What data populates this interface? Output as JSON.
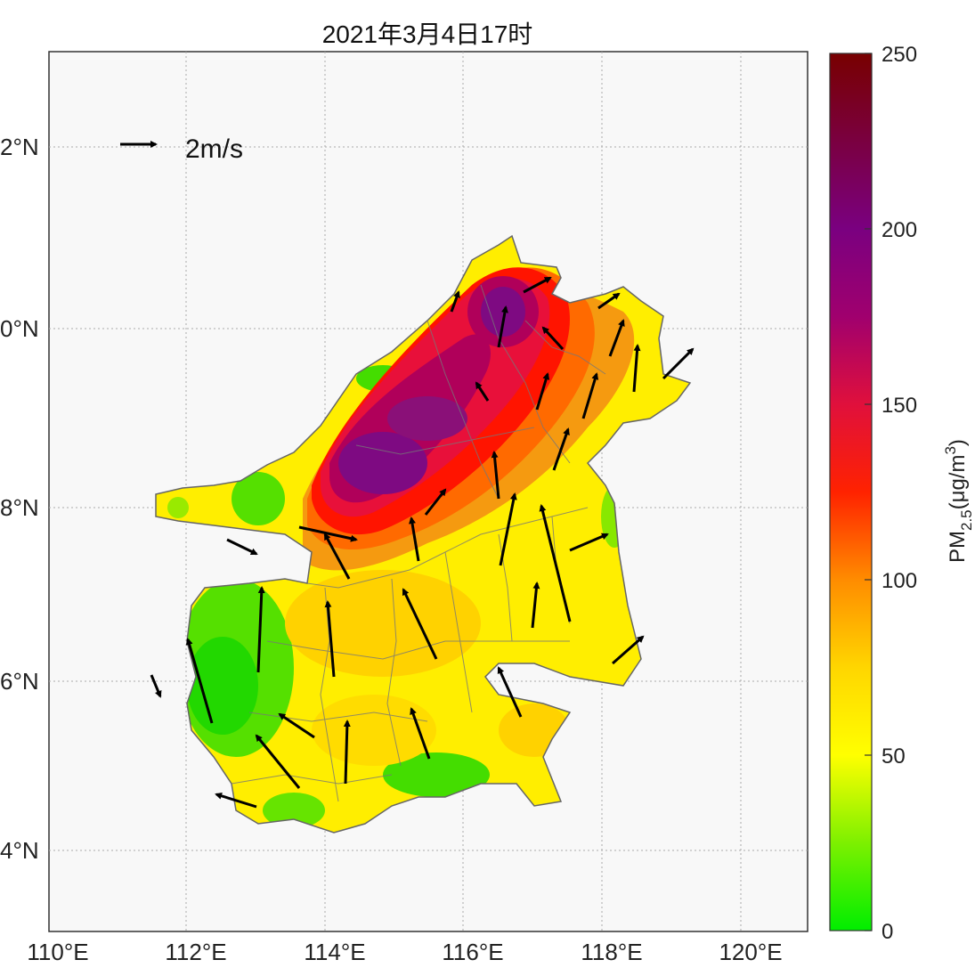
{
  "title": "2021年3月4日17时",
  "x_ticks": [
    "110°E",
    "112°E",
    "114°E",
    "116°E",
    "118°E",
    "120°E"
  ],
  "y_ticks": [
    "2°N",
    "0°N",
    "8°N",
    "6°N",
    "4°N"
  ],
  "wind_scale": {
    "label": "2m/s"
  },
  "colorbar": {
    "ticks": [
      "250",
      "200",
      "150",
      "100",
      "50",
      "0"
    ],
    "unit_main": "PM",
    "unit_sub": "2.5",
    "unit_tail": "(μg/m",
    "unit_sup": "3",
    "unit_close": ")",
    "colors": [
      "#00ee00",
      "#ffff00",
      "#ffc800",
      "#ff6400",
      "#ff0000",
      "#b4005a",
      "#780078",
      "#780000"
    ]
  },
  "colors": {
    "background": "#f7f7f7",
    "boundary": "#555555",
    "arrow": "#000000"
  },
  "chart_data": {
    "type": "heatmap",
    "title": "2021年3月4日17时",
    "variable": "PM2.5",
    "unit": "μg/m3",
    "xlim": [
      110,
      121
    ],
    "x_ticks": [
      110,
      112,
      114,
      116,
      118,
      120
    ],
    "colorbar_range": [
      0,
      250
    ],
    "colorbar_ticks": [
      0,
      50,
      100,
      150,
      200,
      250
    ],
    "grid": true,
    "legend": "top-left wind scale arrow",
    "wind_scale_ms": 2
  }
}
